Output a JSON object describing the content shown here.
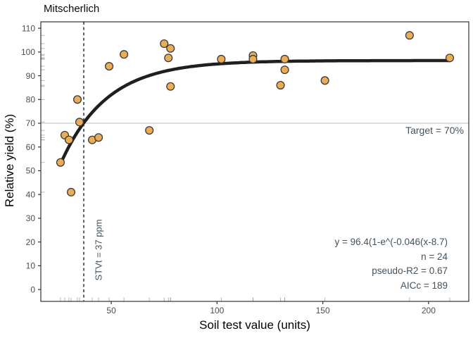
{
  "chart_data": {
    "type": "scatter",
    "title": "Mitscherlich",
    "xlabel": "Soil test value (units)",
    "ylabel": "Relative yield (%)",
    "xlim": [
      16.7,
      219
    ],
    "ylim": [
      -5,
      112.7
    ],
    "x_ticks": [
      50,
      100,
      150,
      200
    ],
    "y_ticks": [
      0,
      10,
      20,
      30,
      40,
      50,
      60,
      70,
      80,
      90,
      100,
      110
    ],
    "points": [
      [
        26,
        53.5
      ],
      [
        28,
        65
      ],
      [
        30,
        63
      ],
      [
        31,
        41
      ],
      [
        34,
        80
      ],
      [
        35,
        70.5
      ],
      [
        41,
        63
      ],
      [
        44,
        64
      ],
      [
        49,
        94
      ],
      [
        56,
        99
      ],
      [
        68,
        67
      ],
      [
        75,
        103.5
      ],
      [
        77,
        97.5
      ],
      [
        78,
        101.5
      ],
      [
        78,
        85.5
      ],
      [
        102,
        97
      ],
      [
        117,
        98.5
      ],
      [
        117,
        97
      ],
      [
        130,
        86
      ],
      [
        132,
        97
      ],
      [
        132,
        92.5
      ],
      [
        151,
        88
      ],
      [
        191,
        107
      ],
      [
        210,
        97.5
      ]
    ],
    "fit_curve": {
      "model": "mitscherlich",
      "a": 96.4,
      "c": 0.046,
      "b": 8.7,
      "x_start": 26,
      "x_end": 210
    },
    "target_line": {
      "y": 70,
      "label": "Target = 70%"
    },
    "stv_line": {
      "x": 37,
      "label": "STVt = 37 ppm"
    },
    "annotations": [
      "y = 96.4(1-e^(-0.046(x-8.7)",
      "n = 24",
      "pseudo-R2 = 0.67",
      "AICc = 189"
    ],
    "rug": {
      "bottom": true,
      "left": true
    },
    "legend": "none",
    "grid": "off",
    "colors": {
      "point_fill": "#EBAC57",
      "point_stroke": "#3a3a3a",
      "curve": "#1f1f1f",
      "dashed_line": "#2e3f4c",
      "target_line": "#c9c9c9",
      "annotation_text": "#42525e",
      "tick_label": "#4d4d4d",
      "tick_mark": "#333333",
      "rug": "#9a9a9a",
      "panel_border": "#333333"
    }
  }
}
